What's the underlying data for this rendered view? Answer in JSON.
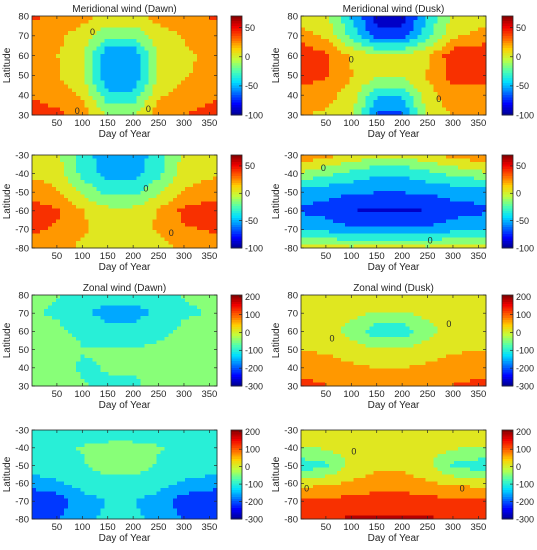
{
  "figure": {
    "colormap": [
      "#00008f",
      "#0000ff",
      "#0070ff",
      "#00dfff",
      "#50ffaf",
      "#c0ff40",
      "#ffcf00",
      "#ff6000",
      "#f00000",
      "#800000"
    ]
  },
  "chart_data": [
    {
      "type": "heatmap",
      "title": "Meridional wind (Dawn)",
      "xlabel": "Day of Year",
      "ylabel": "Latitude",
      "xlim": [
        1,
        365
      ],
      "ylim": [
        30,
        80
      ],
      "xticks": [
        50,
        100,
        150,
        200,
        250,
        300,
        350
      ],
      "yticks": [
        30,
        40,
        50,
        60,
        70,
        80
      ],
      "clim": [
        -100,
        70
      ],
      "colorbar_ticks": [
        50,
        0,
        -50,
        -100
      ],
      "contour_labels": [
        {
          "text": "0",
          "x": 120,
          "y": 72
        },
        {
          "text": "0",
          "x": 90,
          "y": 32
        },
        {
          "text": "0",
          "x": 230,
          "y": 33
        }
      ],
      "field": {
        "x": [
          1,
          50,
          100,
          150,
          200,
          250,
          300,
          365
        ],
        "y": [
          30,
          40,
          50,
          60,
          70,
          80
        ],
        "z": [
          [
            42,
            36,
            25,
            -8,
            -8,
            25,
            32,
            40
          ],
          [
            30,
            25,
            10,
            -38,
            -38,
            10,
            22,
            30
          ],
          [
            20,
            15,
            -5,
            -62,
            -62,
            -5,
            12,
            20
          ],
          [
            18,
            14,
            0,
            -62,
            -62,
            0,
            10,
            18
          ],
          [
            25,
            18,
            5,
            -20,
            -20,
            5,
            15,
            25
          ],
          [
            35,
            28,
            20,
            10,
            10,
            20,
            28,
            35
          ]
        ]
      }
    },
    {
      "type": "heatmap",
      "title": "Meridional wind (Dusk)",
      "xlabel": "Day of Year",
      "ylabel": "Latitude",
      "xlim": [
        1,
        365
      ],
      "ylim": [
        30,
        80
      ],
      "xticks": [
        50,
        100,
        150,
        200,
        250,
        300,
        350
      ],
      "yticks": [
        30,
        40,
        50,
        60,
        70,
        80
      ],
      "clim": [
        -100,
        70
      ],
      "colorbar_ticks": [
        50,
        0,
        -50,
        -100
      ],
      "contour_labels": [
        {
          "text": "0",
          "x": 100,
          "y": 58
        },
        {
          "text": "0",
          "x": 272,
          "y": 38
        }
      ],
      "field": {
        "x": [
          1,
          50,
          100,
          150,
          200,
          250,
          300,
          365
        ],
        "y": [
          30,
          40,
          50,
          60,
          70,
          80
        ],
        "z": [
          [
            15,
            10,
            0,
            -65,
            -65,
            0,
            15,
            15
          ],
          [
            25,
            20,
            5,
            -40,
            -40,
            5,
            25,
            25
          ],
          [
            40,
            35,
            15,
            0,
            0,
            15,
            40,
            40
          ],
          [
            50,
            35,
            10,
            0,
            0,
            10,
            45,
            50
          ],
          [
            20,
            10,
            -30,
            -75,
            -75,
            -30,
            10,
            20
          ],
          [
            5,
            0,
            -45,
            -88,
            -88,
            -45,
            0,
            5
          ]
        ]
      }
    },
    {
      "type": "heatmap",
      "title": "",
      "xlabel": "Day of Year",
      "ylabel": "Latitude",
      "xlim": [
        1,
        365
      ],
      "ylim": [
        -80,
        -30
      ],
      "xticks": [
        50,
        100,
        150,
        200,
        250,
        300,
        350
      ],
      "yticks": [
        -80,
        -70,
        -60,
        -50,
        -40,
        -30
      ],
      "clim": [
        -100,
        70
      ],
      "colorbar_ticks": [
        50,
        0,
        -50,
        -100
      ],
      "contour_labels": [
        {
          "text": "0",
          "x": 225,
          "y": -48
        },
        {
          "text": "0",
          "x": 275,
          "y": -72
        }
      ],
      "field": {
        "x": [
          1,
          50,
          100,
          150,
          200,
          250,
          300,
          365
        ],
        "y": [
          -80,
          -70,
          -60,
          -50,
          -40,
          -30
        ],
        "z": [
          [
            25,
            20,
            10,
            0,
            0,
            5,
            20,
            25
          ],
          [
            35,
            30,
            15,
            10,
            10,
            15,
            30,
            35
          ],
          [
            42,
            35,
            15,
            0,
            0,
            15,
            38,
            42
          ],
          [
            25,
            15,
            -10,
            -30,
            -30,
            -10,
            15,
            25
          ],
          [
            10,
            5,
            -30,
            -52,
            -52,
            -30,
            5,
            10
          ],
          [
            10,
            0,
            -35,
            -55,
            -55,
            -35,
            0,
            10
          ]
        ]
      }
    },
    {
      "type": "heatmap",
      "title": "",
      "xlabel": "Day of Year",
      "ylabel": "Latitude",
      "xlim": [
        1,
        365
      ],
      "ylim": [
        -80,
        -30
      ],
      "xticks": [
        50,
        100,
        150,
        200,
        250,
        300,
        350
      ],
      "yticks": [
        -80,
        -70,
        -60,
        -50,
        -40,
        -30
      ],
      "clim": [
        -100,
        70
      ],
      "colorbar_ticks": [
        50,
        0,
        -50,
        -100
      ],
      "contour_labels": [
        {
          "text": "0",
          "x": 45,
          "y": -37
        },
        {
          "text": "0",
          "x": 255,
          "y": -76
        }
      ],
      "field": {
        "x": [
          1,
          50,
          100,
          150,
          200,
          250,
          300,
          365
        ],
        "y": [
          -80,
          -70,
          -60,
          -50,
          -40,
          -30
        ],
        "z": [
          [
            10,
            5,
            0,
            5,
            5,
            0,
            5,
            10
          ],
          [
            -45,
            -50,
            -60,
            -58,
            -58,
            -60,
            -50,
            -45
          ],
          [
            -65,
            -70,
            -80,
            -85,
            -85,
            -80,
            -70,
            -65
          ],
          [
            -55,
            -55,
            -60,
            -62,
            -62,
            -60,
            -55,
            -55
          ],
          [
            -10,
            -20,
            -30,
            -40,
            -40,
            -30,
            -20,
            -10
          ],
          [
            30,
            20,
            10,
            0,
            0,
            10,
            20,
            30
          ]
        ]
      }
    },
    {
      "type": "heatmap",
      "title": "Zonal wind (Dawn)",
      "xlabel": "Day of Year",
      "ylabel": "Latitude",
      "xlim": [
        1,
        365
      ],
      "ylim": [
        30,
        80
      ],
      "xticks": [
        50,
        100,
        150,
        200,
        250,
        300,
        350
      ],
      "yticks": [
        30,
        40,
        50,
        60,
        70,
        80
      ],
      "clim": [
        -300,
        210
      ],
      "colorbar_ticks": [
        200,
        100,
        0,
        -100,
        -200,
        -300
      ],
      "contour_labels": [],
      "field": {
        "x": [
          1,
          50,
          100,
          150,
          200,
          250,
          300,
          365
        ],
        "y": [
          30,
          40,
          50,
          60,
          70,
          80
        ],
        "z": [
          [
            -30,
            -40,
            -70,
            -80,
            -80,
            -60,
            -40,
            -30
          ],
          [
            -50,
            -60,
            -80,
            -70,
            -70,
            -70,
            -60,
            -50
          ],
          [
            -30,
            -40,
            -70,
            -70,
            -70,
            -60,
            -40,
            -30
          ],
          [
            -50,
            -60,
            -90,
            -110,
            -110,
            -90,
            -60,
            -50
          ],
          [
            -70,
            -80,
            -120,
            -150,
            -150,
            -120,
            -80,
            -70
          ],
          [
            -60,
            -70,
            -100,
            -110,
            -110,
            -100,
            -70,
            -60
          ]
        ]
      }
    },
    {
      "type": "heatmap",
      "title": "Zonal wind (Dusk)",
      "xlabel": "Day of Year",
      "ylabel": "Latitude",
      "xlim": [
        1,
        365
      ],
      "ylim": [
        30,
        80
      ],
      "xticks": [
        50,
        100,
        150,
        200,
        250,
        300,
        350
      ],
      "yticks": [
        30,
        40,
        50,
        60,
        70,
        80
      ],
      "clim": [
        -300,
        210
      ],
      "colorbar_ticks": [
        200,
        100,
        0,
        -100,
        -200,
        -300
      ],
      "contour_labels": [
        {
          "text": "0",
          "x": 62,
          "y": 56
        },
        {
          "text": "0",
          "x": 292,
          "y": 64
        }
      ],
      "field": {
        "x": [
          1,
          50,
          100,
          150,
          200,
          250,
          300,
          365
        ],
        "y": [
          30,
          40,
          50,
          60,
          70,
          80
        ],
        "z": [
          [
            110,
            100,
            80,
            70,
            70,
            80,
            100,
            110
          ],
          [
            80,
            70,
            50,
            40,
            40,
            50,
            70,
            80
          ],
          [
            40,
            30,
            10,
            -10,
            -10,
            10,
            30,
            40
          ],
          [
            20,
            10,
            -40,
            -110,
            -110,
            -40,
            10,
            20
          ],
          [
            20,
            20,
            0,
            -20,
            -20,
            0,
            20,
            20
          ],
          [
            30,
            30,
            20,
            20,
            20,
            20,
            30,
            30
          ]
        ]
      }
    },
    {
      "type": "heatmap",
      "title": "",
      "xlabel": "Day of Year",
      "ylabel": "Latitude",
      "xlim": [
        1,
        365
      ],
      "ylim": [
        -80,
        -30
      ],
      "xticks": [
        50,
        100,
        150,
        200,
        250,
        300,
        350
      ],
      "yticks": [
        -80,
        -70,
        -60,
        -50,
        -40,
        -30
      ],
      "clim": [
        -300,
        210
      ],
      "colorbar_ticks": [
        200,
        100,
        0,
        -100,
        -200,
        -300
      ],
      "contour_labels": [],
      "field": {
        "x": [
          1,
          50,
          100,
          150,
          200,
          250,
          300,
          365
        ],
        "y": [
          -80,
          -70,
          -60,
          -50,
          -40,
          -30
        ],
        "z": [
          [
            -210,
            -190,
            -140,
            -120,
            -120,
            -140,
            -190,
            -210
          ],
          [
            -240,
            -220,
            -150,
            -130,
            -130,
            -150,
            -220,
            -240
          ],
          [
            -160,
            -140,
            -110,
            -100,
            -100,
            -110,
            -140,
            -160
          ],
          [
            -100,
            -90,
            -80,
            -40,
            -40,
            -80,
            -90,
            -100
          ],
          [
            -90,
            -80,
            -70,
            -60,
            -60,
            -70,
            -80,
            -90
          ],
          [
            -120,
            -110,
            -100,
            -100,
            -100,
            -100,
            -110,
            -120
          ]
        ]
      }
    },
    {
      "type": "heatmap",
      "title": "",
      "xlabel": "Day of Year",
      "ylabel": "Latitude",
      "xlim": [
        1,
        365
      ],
      "ylim": [
        -80,
        -30
      ],
      "xticks": [
        50,
        100,
        150,
        200,
        250,
        300,
        350
      ],
      "yticks": [
        -80,
        -70,
        -60,
        -50,
        -40,
        -30
      ],
      "clim": [
        -300,
        210
      ],
      "colorbar_ticks": [
        200,
        100,
        0,
        -100,
        -200,
        -300
      ],
      "contour_labels": [
        {
          "text": "0",
          "x": 105,
          "y": -42
        },
        {
          "text": "0",
          "x": 12,
          "y": -63
        },
        {
          "text": "0",
          "x": 318,
          "y": -63
        }
      ],
      "field": {
        "x": [
          1,
          50,
          100,
          150,
          200,
          250,
          300,
          365
        ],
        "y": [
          -80,
          -70,
          -60,
          -50,
          -40,
          -30
        ],
        "z": [
          [
            150,
            150,
            160,
            160,
            160,
            160,
            150,
            150
          ],
          [
            110,
            110,
            120,
            130,
            130,
            120,
            110,
            110
          ],
          [
            20,
            30,
            50,
            60,
            60,
            50,
            30,
            20
          ],
          [
            -110,
            -90,
            0,
            30,
            30,
            0,
            -90,
            -110
          ],
          [
            -20,
            -10,
            10,
            20,
            20,
            10,
            -10,
            -20
          ],
          [
            20,
            20,
            20,
            20,
            20,
            20,
            20,
            20
          ]
        ]
      }
    }
  ]
}
